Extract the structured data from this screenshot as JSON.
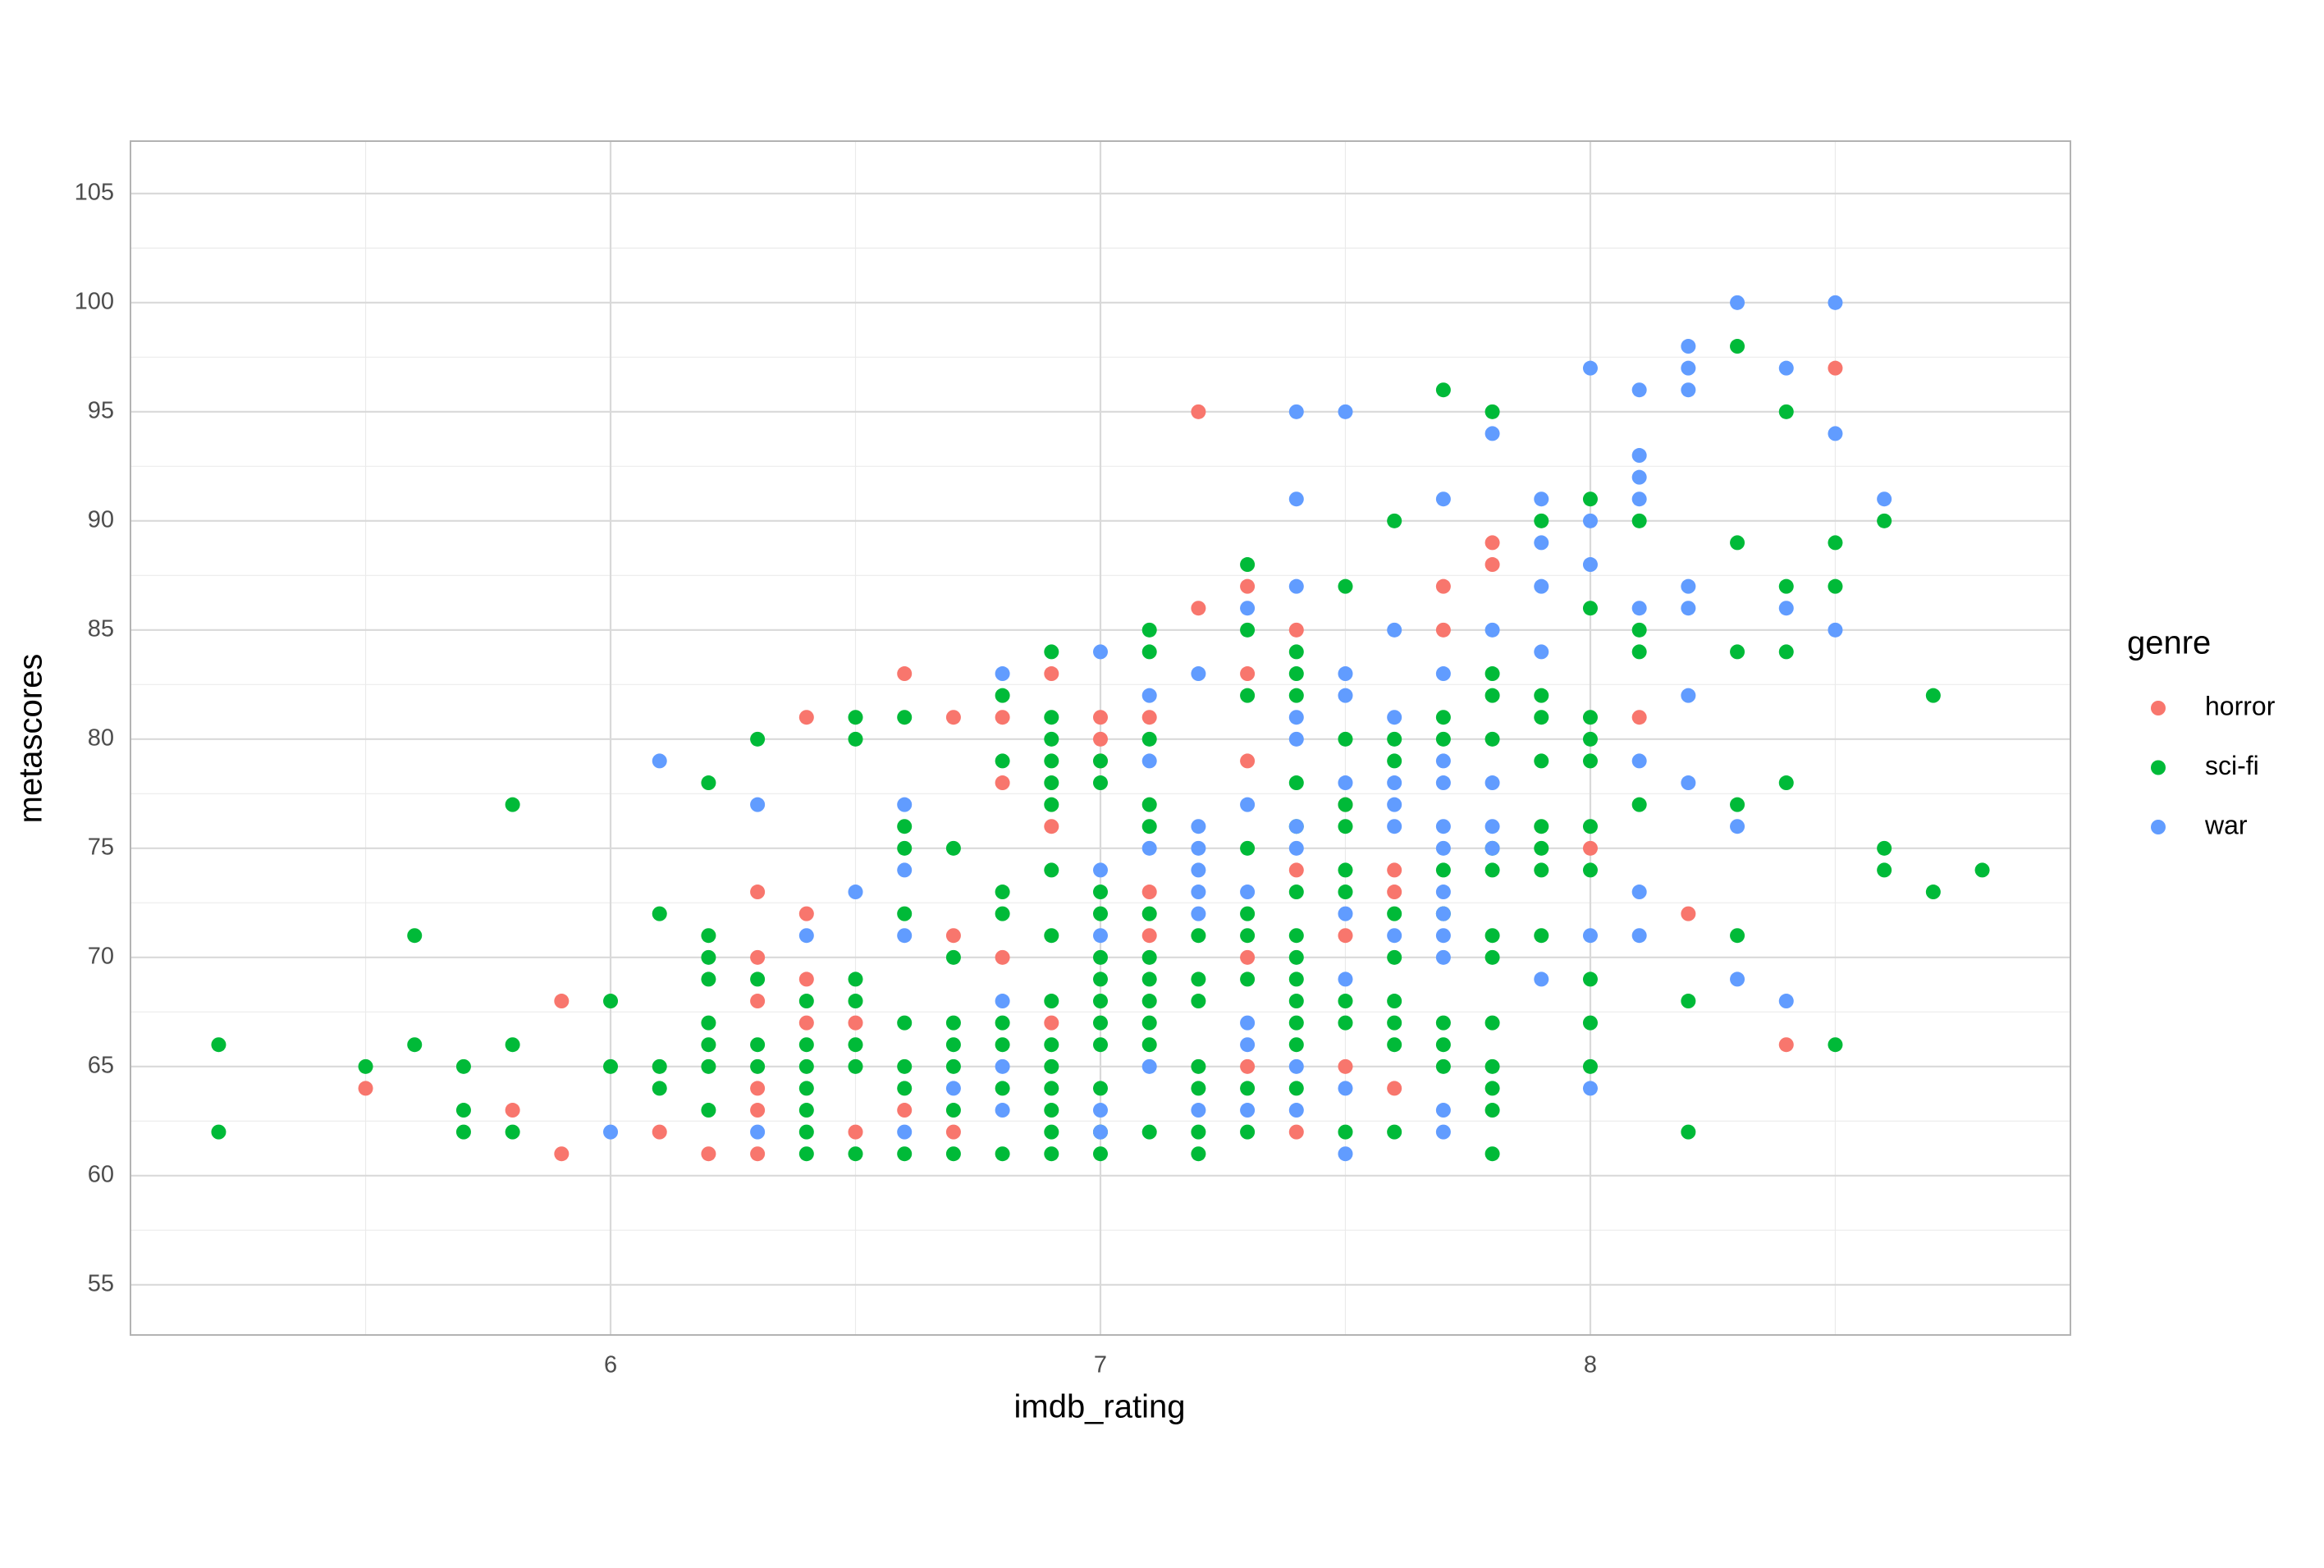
{
  "chart_data": {
    "type": "scatter",
    "x_label": "imdb_rating",
    "y_label": "metascores",
    "legend_title": "genre",
    "legend": "right",
    "xlim": [
      5.02,
      8.98
    ],
    "ylim": [
      52.7,
      107.4
    ],
    "xticks": [
      6,
      7,
      8
    ],
    "yticks": [
      55,
      60,
      65,
      70,
      75,
      80,
      85,
      90,
      95,
      100,
      105
    ],
    "minor_xticks": [
      5.5,
      6.5,
      7.5,
      8.5
    ],
    "minor_yticks": [
      57.5,
      62.5,
      67.5,
      72.5,
      77.5,
      82.5,
      87.5,
      92.5,
      97.5,
      102.5
    ],
    "grid": true,
    "series": [
      {
        "name": "horror",
        "color": "#F8766D",
        "x": [
          5.5,
          5.8,
          5.9,
          5.9,
          6.1,
          6.2,
          6.3,
          6.3,
          6.3,
          6.3,
          6.3,
          6.3,
          6.4,
          6.4,
          6.4,
          6.4,
          6.5,
          6.5,
          6.6,
          6.6,
          6.7,
          6.7,
          6.7,
          6.8,
          6.8,
          6.8,
          6.9,
          6.9,
          6.9,
          7.0,
          7.0,
          7.0,
          7.1,
          7.1,
          7.1,
          7.2,
          7.2,
          7.3,
          7.3,
          7.3,
          7.3,
          7.3,
          7.4,
          7.4,
          7.4,
          7.5,
          7.5,
          7.5,
          7.6,
          7.6,
          7.6,
          7.7,
          7.7,
          7.8,
          7.8,
          8.0,
          8.1,
          8.2,
          8.4,
          8.5
        ],
        "values": [
          64,
          63,
          68,
          61,
          62,
          61,
          73,
          70,
          68,
          64,
          63,
          61,
          81,
          72,
          69,
          67,
          67,
          62,
          83,
          63,
          81,
          71,
          62,
          81,
          78,
          70,
          83,
          76,
          67,
          81,
          80,
          79,
          81,
          73,
          71,
          95,
          86,
          87,
          83,
          79,
          70,
          65,
          85,
          74,
          62,
          77,
          71,
          65,
          74,
          73,
          64,
          87,
          85,
          89,
          88,
          75,
          81,
          72,
          66,
          97
        ]
      },
      {
        "name": "sci-fi",
        "color": "#00BA38",
        "x": [
          5.2,
          5.2,
          5.5,
          5.6,
          5.6,
          5.7,
          5.7,
          5.7,
          5.8,
          5.8,
          5.8,
          6.0,
          6.0,
          6.1,
          6.1,
          6.1,
          6.2,
          6.2,
          6.2,
          6.2,
          6.2,
          6.2,
          6.2,
          6.2,
          6.3,
          6.3,
          6.3,
          6.3,
          6.4,
          6.4,
          6.4,
          6.4,
          6.4,
          6.4,
          6.4,
          6.5,
          6.5,
          6.5,
          6.5,
          6.5,
          6.5,
          6.5,
          6.6,
          6.6,
          6.6,
          6.6,
          6.6,
          6.6,
          6.6,
          6.6,
          6.7,
          6.7,
          6.7,
          6.7,
          6.7,
          6.7,
          6.7,
          6.8,
          6.8,
          6.8,
          6.8,
          6.8,
          6.8,
          6.8,
          6.8,
          6.9,
          6.9,
          6.9,
          6.9,
          6.9,
          6.9,
          6.9,
          6.9,
          6.9,
          6.9,
          6.9,
          6.9,
          6.9,
          6.9,
          6.9,
          7.0,
          7.0,
          7.0,
          7.0,
          7.0,
          7.0,
          7.0,
          7.0,
          7.0,
          7.0,
          7.0,
          7.0,
          7.1,
          7.1,
          7.1,
          7.1,
          7.1,
          7.1,
          7.1,
          7.1,
          7.1,
          7.1,
          7.1,
          7.1,
          7.2,
          7.2,
          7.2,
          7.2,
          7.2,
          7.2,
          7.2,
          7.3,
          7.3,
          7.3,
          7.3,
          7.3,
          7.3,
          7.3,
          7.3,
          7.3,
          7.4,
          7.4,
          7.4,
          7.4,
          7.4,
          7.4,
          7.4,
          7.4,
          7.4,
          7.4,
          7.4,
          7.4,
          7.4,
          7.5,
          7.5,
          7.5,
          7.5,
          7.5,
          7.5,
          7.5,
          7.5,
          7.5,
          7.6,
          7.6,
          7.6,
          7.6,
          7.6,
          7.6,
          7.6,
          7.6,
          7.6,
          7.7,
          7.7,
          7.7,
          7.7,
          7.7,
          7.7,
          7.7,
          7.7,
          7.8,
          7.8,
          7.8,
          7.8,
          7.8,
          7.8,
          7.8,
          7.8,
          7.8,
          7.8,
          7.8,
          7.8,
          7.8,
          7.9,
          7.9,
          7.9,
          7.9,
          7.9,
          7.9,
          7.9,
          7.9,
          8.0,
          8.0,
          8.0,
          8.0,
          8.0,
          8.0,
          8.0,
          8.0,
          8.0,
          8.0,
          8.1,
          8.1,
          8.1,
          8.1,
          8.2,
          8.2,
          8.3,
          8.3,
          8.3,
          8.3,
          8.3,
          8.4,
          8.4,
          8.4,
          8.4,
          8.5,
          8.5,
          8.5,
          8.6,
          8.6,
          8.6,
          8.7,
          8.7,
          8.8
        ],
        "values": [
          66,
          62,
          65,
          71,
          66,
          65,
          63,
          62,
          77,
          66,
          62,
          68,
          65,
          72,
          65,
          64,
          78,
          71,
          70,
          69,
          67,
          66,
          65,
          63,
          80,
          69,
          66,
          65,
          68,
          66,
          65,
          64,
          63,
          62,
          61,
          81,
          80,
          69,
          68,
          66,
          65,
          61,
          81,
          76,
          75,
          72,
          67,
          65,
          64,
          61,
          75,
          70,
          67,
          66,
          65,
          63,
          61,
          82,
          79,
          73,
          72,
          67,
          66,
          64,
          61,
          84,
          81,
          80,
          79,
          78,
          77,
          74,
          71,
          68,
          66,
          65,
          64,
          63,
          62,
          61,
          79,
          78,
          73,
          72,
          70,
          69,
          68,
          67,
          66,
          64,
          62,
          61,
          85,
          84,
          80,
          77,
          76,
          72,
          70,
          69,
          68,
          67,
          66,
          62,
          71,
          69,
          68,
          65,
          64,
          62,
          61,
          88,
          85,
          82,
          75,
          72,
          71,
          69,
          64,
          62,
          84,
          83,
          82,
          78,
          76,
          73,
          71,
          70,
          69,
          68,
          67,
          66,
          64,
          87,
          80,
          77,
          76,
          74,
          73,
          68,
          67,
          62,
          90,
          80,
          79,
          72,
          70,
          68,
          67,
          66,
          62,
          96,
          81,
          80,
          74,
          72,
          67,
          66,
          65,
          95,
          83,
          82,
          80,
          75,
          74,
          71,
          70,
          67,
          65,
          64,
          63,
          61,
          90,
          82,
          81,
          79,
          76,
          75,
          74,
          71,
          91,
          86,
          81,
          80,
          79,
          76,
          74,
          69,
          67,
          65,
          90,
          85,
          84,
          77,
          68,
          62,
          98,
          89,
          84,
          77,
          71,
          95,
          87,
          84,
          78,
          89,
          87,
          66,
          90,
          75,
          74,
          82,
          73,
          74
        ]
      },
      {
        "name": "war",
        "color": "#619CFF",
        "x": [
          6.0,
          6.1,
          6.3,
          6.3,
          6.4,
          6.5,
          6.6,
          6.6,
          6.6,
          6.6,
          6.7,
          6.8,
          6.8,
          6.8,
          6.8,
          7.0,
          7.0,
          7.0,
          7.0,
          7.0,
          7.1,
          7.1,
          7.1,
          7.1,
          7.2,
          7.2,
          7.2,
          7.2,
          7.2,
          7.2,
          7.2,
          7.3,
          7.3,
          7.3,
          7.3,
          7.3,
          7.3,
          7.4,
          7.4,
          7.4,
          7.4,
          7.4,
          7.4,
          7.4,
          7.4,
          7.4,
          7.5,
          7.5,
          7.5,
          7.5,
          7.5,
          7.5,
          7.5,
          7.5,
          7.6,
          7.6,
          7.6,
          7.6,
          7.6,
          7.6,
          7.7,
          7.7,
          7.7,
          7.7,
          7.7,
          7.7,
          7.7,
          7.7,
          7.7,
          7.7,
          7.7,
          7.7,
          7.8,
          7.8,
          7.8,
          7.8,
          7.8,
          7.9,
          7.9,
          7.9,
          7.9,
          7.9,
          8.0,
          8.0,
          8.0,
          8.0,
          8.0,
          8.1,
          8.1,
          8.1,
          8.1,
          8.1,
          8.1,
          8.1,
          8.1,
          8.2,
          8.2,
          8.2,
          8.2,
          8.2,
          8.2,
          8.2,
          8.3,
          8.3,
          8.3,
          8.4,
          8.4,
          8.4,
          8.5,
          8.5,
          8.5,
          8.6
        ],
        "values": [
          62,
          79,
          77,
          62,
          71,
          73,
          77,
          74,
          71,
          62,
          64,
          83,
          68,
          65,
          63,
          84,
          74,
          71,
          63,
          62,
          82,
          79,
          75,
          65,
          83,
          76,
          75,
          74,
          73,
          72,
          63,
          86,
          77,
          73,
          67,
          66,
          63,
          95,
          91,
          87,
          81,
          80,
          76,
          75,
          65,
          63,
          95,
          83,
          82,
          78,
          72,
          69,
          64,
          61,
          85,
          81,
          78,
          77,
          76,
          71,
          91,
          83,
          79,
          78,
          76,
          75,
          73,
          72,
          71,
          70,
          63,
          62,
          94,
          85,
          78,
          76,
          75,
          91,
          89,
          87,
          84,
          69,
          97,
          90,
          88,
          71,
          64,
          96,
          93,
          92,
          91,
          86,
          79,
          73,
          71,
          98,
          97,
          96,
          87,
          86,
          82,
          78,
          100,
          76,
          69,
          97,
          86,
          68,
          100,
          94,
          85,
          91
        ]
      }
    ]
  }
}
